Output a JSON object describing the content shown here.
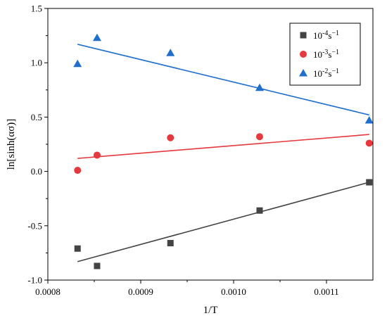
{
  "chart_data": {
    "type": "scatter",
    "title": "",
    "xlabel": "1/T",
    "ylabel": "ln[sinh(ασ)]",
    "xlim": [
      0.0008,
      0.00115
    ],
    "ylim": [
      -1.0,
      1.5
    ],
    "xticks": [
      "0.0008",
      "0.0009",
      "0.0010",
      "0.0011"
    ],
    "yticks": [
      "-1.0",
      "-0.5",
      "0.0",
      "0.5",
      "1.0",
      "1.5"
    ],
    "legend_position": "top-right",
    "series": [
      {
        "name": "10⁻⁴s⁻¹",
        "legend_base": "10",
        "legend_exp1": "-4",
        "legend_unit": "s",
        "legend_exp2": "−1",
        "marker": "square",
        "color": "#444444",
        "x": [
          0.000832,
          0.000853,
          0.000932,
          0.001028,
          0.001146
        ],
        "y": [
          -0.71,
          -0.87,
          -0.66,
          -0.36,
          -0.1
        ],
        "fit": {
          "x": [
            0.000832,
            0.001146
          ],
          "y": [
            -0.83,
            -0.1
          ]
        }
      },
      {
        "name": "10⁻³s⁻¹",
        "legend_base": "10",
        "legend_exp1": "-3",
        "legend_unit": "s",
        "legend_exp2": "−1",
        "marker": "circle",
        "color": "#e8383d",
        "x": [
          0.000832,
          0.000853,
          0.000932,
          0.001028,
          0.001146
        ],
        "y": [
          0.01,
          0.15,
          0.31,
          0.32,
          0.26
        ],
        "fit": {
          "x": [
            0.000832,
            0.001146
          ],
          "y": [
            0.12,
            0.34
          ]
        }
      },
      {
        "name": "10⁻²s⁻¹",
        "legend_base": "10",
        "legend_exp1": "-2",
        "legend_unit": "s",
        "legend_exp2": "−1",
        "marker": "triangle",
        "color": "#1f6fd1",
        "x": [
          0.000832,
          0.000853,
          0.000932,
          0.001028,
          0.001146
        ],
        "y": [
          0.99,
          1.23,
          1.09,
          0.77,
          0.47
        ],
        "fit": {
          "x": [
            0.000832,
            0.001146
          ],
          "y": [
            1.17,
            0.52
          ]
        }
      }
    ]
  }
}
